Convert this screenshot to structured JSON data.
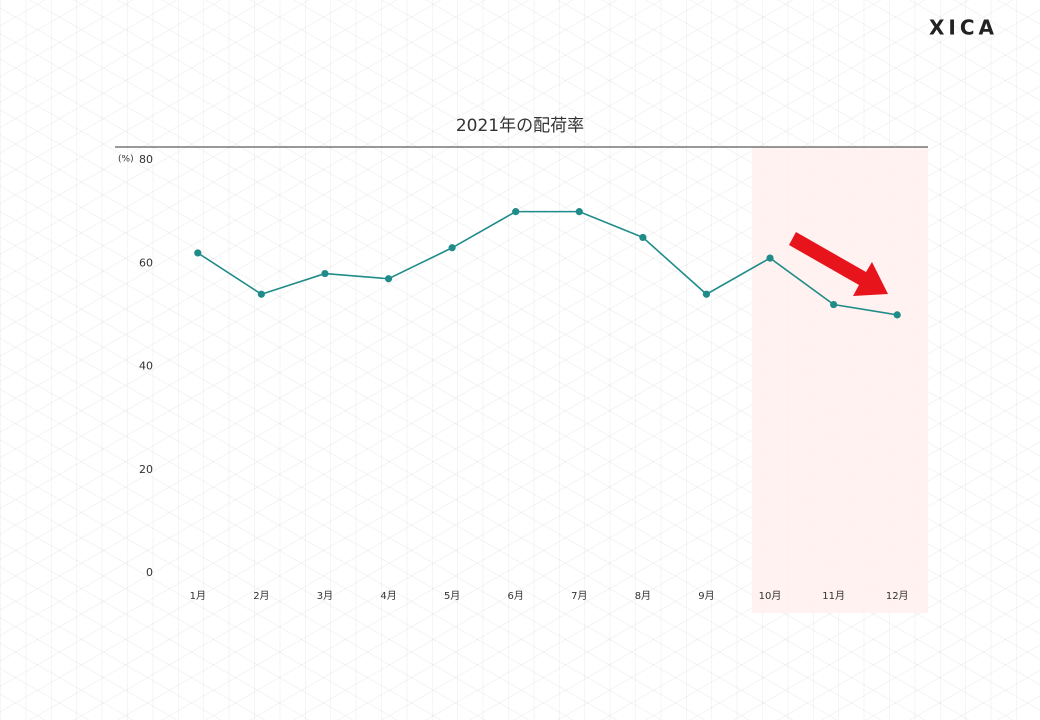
{
  "brand": "XICA",
  "chart_data": {
    "type": "line",
    "title": "2021年の配荷率",
    "y_unit": "(%)",
    "categories": [
      "1月",
      "2月",
      "3月",
      "4月",
      "5月",
      "6月",
      "7月",
      "8月",
      "9月",
      "10月",
      "11月",
      "12月"
    ],
    "values": [
      62,
      54,
      58,
      57,
      63,
      70,
      70,
      65,
      54,
      61,
      52,
      50
    ],
    "color": "#1f8c8a",
    "ylim": [
      0,
      80
    ],
    "yticks": [
      0,
      20,
      40,
      60,
      80
    ],
    "grid": false
  }
}
